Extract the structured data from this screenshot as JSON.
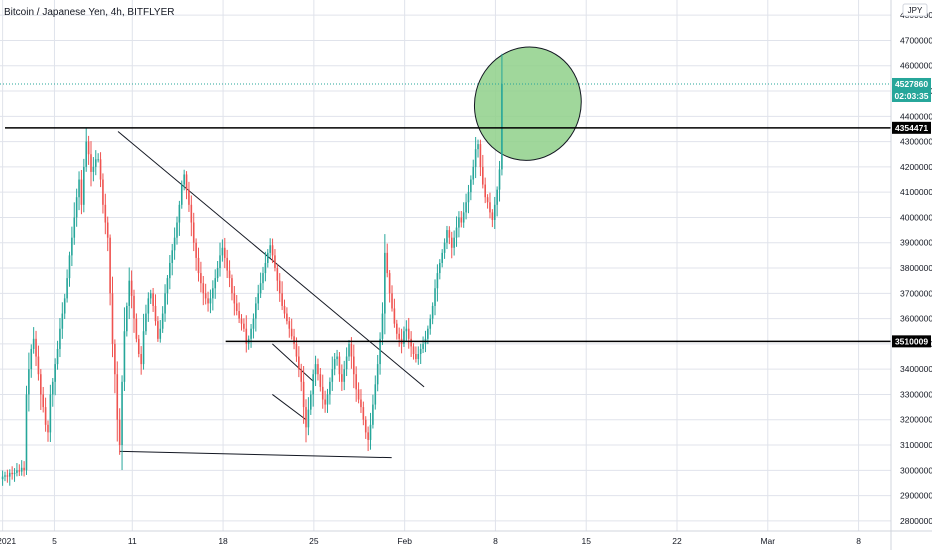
{
  "header": {
    "title": "Bitcoin / Japanese Yen, 4h, BITFLYER",
    "currency_label": "JPY"
  },
  "colors": {
    "up": "#26a69a",
    "down": "#ef5350",
    "grid": "#e0e3eb",
    "level_line": "#000000",
    "ellipse_fill": "#8fd08a",
    "price_badge": "#26a69a",
    "level_badge": "#000000"
  },
  "chart_data": {
    "type": "candlestick",
    "title": "Bitcoin / Japanese Yen, 4h, BITFLYER",
    "ylim": [
      2760000,
      4860000
    ],
    "yticks": [
      2800000,
      2900000,
      3000000,
      3100000,
      3200000,
      3300000,
      3400000,
      3500000,
      3600000,
      3700000,
      3800000,
      3900000,
      4000000,
      4100000,
      4200000,
      4300000,
      4400000,
      4500000,
      4600000,
      4700000,
      4800000
    ],
    "ytick_labels": [
      "2800000",
      "2900000",
      "3000000",
      "3100000",
      "3200000",
      "3300000",
      "3400000",
      "3500000",
      "3600000",
      "3700000",
      "3800000",
      "3900000",
      "4000000",
      "4100000",
      "4200000",
      "4300000",
      "4400000",
      "4500000",
      "4600000",
      "4700000",
      "4800000"
    ],
    "xlim_days": [
      -0.2,
      68.5
    ],
    "xticks": [
      {
        "day": 0,
        "label": "2021"
      },
      {
        "day": 4,
        "label": "5"
      },
      {
        "day": 10,
        "label": "11"
      },
      {
        "day": 17,
        "label": "18"
      },
      {
        "day": 24,
        "label": "25"
      },
      {
        "day": 31,
        "label": "Feb"
      },
      {
        "day": 38,
        "label": "8"
      },
      {
        "day": 45,
        "label": "15"
      },
      {
        "day": 52,
        "label": "22"
      },
      {
        "day": 59,
        "label": "Mar"
      },
      {
        "day": 66,
        "label": "8"
      }
    ],
    "last_price": 4527860,
    "last_price_label": "4527860",
    "countdown_label": "02:03:35",
    "levels": [
      {
        "price": 4354471,
        "label": "4354471"
      },
      {
        "price": 3510009,
        "label": "3510009"
      }
    ],
    "drawings": [
      {
        "kind": "trendline",
        "from": [
          8.9,
          4340000
        ],
        "to": [
          32.5,
          3330000
        ]
      },
      {
        "kind": "trendline",
        "from": [
          9.0,
          3075000
        ],
        "to": [
          30.0,
          3050000
        ]
      },
      {
        "kind": "trendline",
        "from": [
          20.8,
          3500000
        ],
        "to": [
          24.0,
          3350000
        ]
      },
      {
        "kind": "trendline",
        "from": [
          20.8,
          3300000
        ],
        "to": [
          23.4,
          3200000
        ]
      },
      {
        "kind": "ellipse",
        "center": [
          40.5,
          4450000
        ],
        "rx_days": 4.1,
        "ry_price": 225000
      }
    ],
    "closes": [
      2975000,
      2980000,
      2975000,
      2990000,
      2985000,
      2990000,
      3000000,
      2995000,
      3010000,
      3000000,
      3300000,
      3400000,
      3480000,
      3520000,
      3450000,
      3380000,
      3300000,
      3250000,
      3180000,
      3150000,
      3300000,
      3350000,
      3420000,
      3480000,
      3560000,
      3620000,
      3680000,
      3760000,
      3850000,
      3920000,
      4000000,
      4080000,
      4150000,
      4050000,
      4200000,
      4300000,
      4250000,
      4180000,
      4200000,
      4230000,
      4230000,
      4150000,
      4050000,
      3980000,
      3920000,
      3700000,
      3500000,
      3380000,
      3200000,
      3100000,
      3350000,
      3550000,
      3650000,
      3750000,
      3690000,
      3600000,
      3520000,
      3460000,
      3420000,
      3550000,
      3620000,
      3680000,
      3700000,
      3650000,
      3590000,
      3520000,
      3560000,
      3620000,
      3700000,
      3760000,
      3820000,
      3870000,
      3920000,
      3980000,
      4050000,
      4130000,
      4170000,
      4110000,
      4050000,
      3980000,
      3900000,
      3840000,
      3780000,
      3740000,
      3700000,
      3680000,
      3660000,
      3680000,
      3720000,
      3760000,
      3800000,
      3850000,
      3880000,
      3840000,
      3790000,
      3760000,
      3700000,
      3660000,
      3630000,
      3600000,
      3580000,
      3560000,
      3500000,
      3520000,
      3560000,
      3600000,
      3660000,
      3700000,
      3740000,
      3780000,
      3820000,
      3860000,
      3890000,
      3850000,
      3800000,
      3750000,
      3700000,
      3650000,
      3620000,
      3590000,
      3560000,
      3530000,
      3500000,
      3450000,
      3400000,
      3350000,
      3250000,
      3170000,
      3240000,
      3300000,
      3380000,
      3420000,
      3380000,
      3330000,
      3280000,
      3260000,
      3300000,
      3350000,
      3400000,
      3440000,
      3450000,
      3380000,
      3350000,
      3400000,
      3450000,
      3500000,
      3450000,
      3380000,
      3320000,
      3280000,
      3250000,
      3200000,
      3150000,
      3120000,
      3180000,
      3260000,
      3340000,
      3420000,
      3520000,
      3620000,
      3860000,
      3780000,
      3700000,
      3640000,
      3580000,
      3540000,
      3520000,
      3500000,
      3550000,
      3560000,
      3520000,
      3490000,
      3460000,
      3440000,
      3460000,
      3480000,
      3500000,
      3520000,
      3560000,
      3600000,
      3650000,
      3720000,
      3780000,
      3820000,
      3860000,
      3900000,
      3950000,
      3920000,
      3880000,
      3920000,
      3960000,
      4000000,
      3980000,
      4020000,
      4060000,
      4100000,
      4150000,
      4200000,
      4270000,
      4290000,
      4200000,
      4130000,
      4080000,
      4060000,
      4020000,
      3990000,
      4050000,
      4110000,
      4190000,
      4527860
    ]
  }
}
